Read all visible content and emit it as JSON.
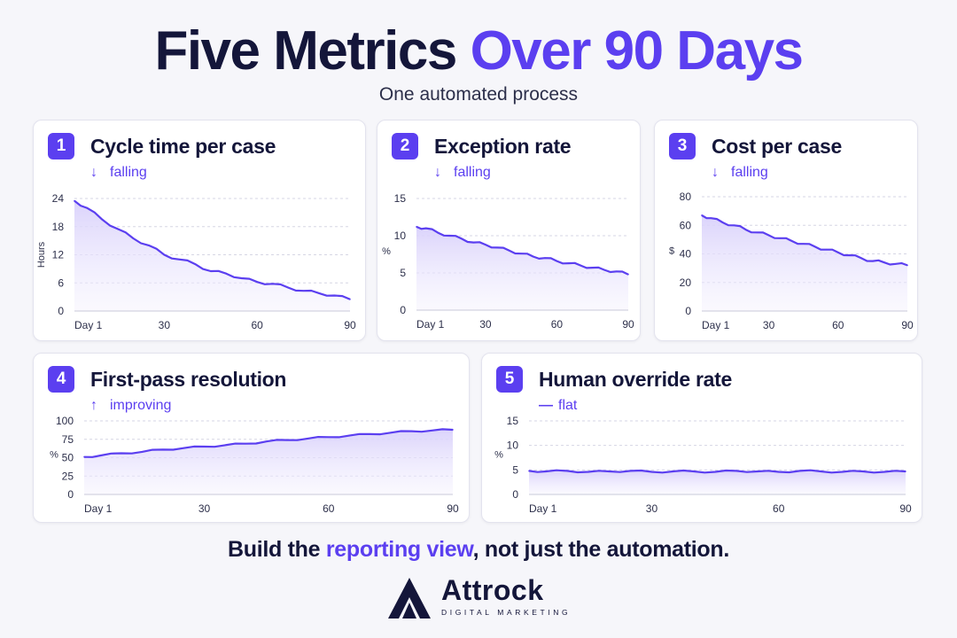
{
  "header": {
    "title_main": "Five Metrics",
    "title_accent": "Over 90 Days",
    "subtitle": "One automated process"
  },
  "colors": {
    "accent": "#5b3ff0",
    "ink": "#14163a",
    "fill": "#ece8fd"
  },
  "charts": [
    {
      "number": "1",
      "title": "Cycle time per case",
      "trend_icon": "arrow-down-icon",
      "trend_glyph": "↓",
      "trend": "falling"
    },
    {
      "number": "2",
      "title": "Exception rate",
      "trend_icon": "arrow-down-icon",
      "trend_glyph": "↓",
      "trend": "falling"
    },
    {
      "number": "3",
      "title": "Cost per case",
      "trend_icon": "arrow-down-icon",
      "trend_glyph": "↓",
      "trend": "falling"
    },
    {
      "number": "4",
      "title": "First-pass resolution",
      "trend_icon": "arrow-up-icon",
      "trend_glyph": "↑",
      "trend": "improving"
    },
    {
      "number": "5",
      "title": "Human override rate",
      "trend_icon": "flat-line-icon",
      "trend_glyph": "—",
      "trend": "flat"
    }
  ],
  "chart_data": [
    {
      "type": "line",
      "title": "Cycle time per case",
      "xlabel": "",
      "ylabel": "Hours",
      "xlim": [
        1,
        90
      ],
      "ylim": [
        0,
        24
      ],
      "yticks": [
        "0",
        "6",
        "12",
        "18",
        "24"
      ],
      "xticks": [
        "Day 1",
        "30",
        "60",
        "90"
      ],
      "grid": true,
      "x": [
        1,
        5,
        10,
        15,
        20,
        25,
        30,
        35,
        40,
        45,
        50,
        55,
        60,
        65,
        70,
        75,
        80,
        85,
        90
      ],
      "values": [
        23.5,
        22.0,
        19.5,
        17.5,
        15.5,
        14.0,
        12.0,
        11.0,
        10.0,
        8.5,
        8.0,
        7.0,
        6.2,
        5.8,
        5.0,
        4.3,
        3.8,
        3.3,
        2.5
      ]
    },
    {
      "type": "line",
      "title": "Exception rate",
      "xlabel": "",
      "ylabel": "%",
      "xlim": [
        1,
        90
      ],
      "ylim": [
        0,
        15
      ],
      "yticks": [
        "0",
        "5",
        "10",
        "15"
      ],
      "xticks": [
        "Day 1",
        "30",
        "60",
        "90"
      ],
      "grid": true,
      "x": [
        1,
        5,
        10,
        15,
        20,
        25,
        30,
        35,
        40,
        45,
        50,
        55,
        60,
        65,
        70,
        75,
        80,
        85,
        90
      ],
      "values": [
        11.2,
        11.0,
        10.4,
        10.0,
        9.6,
        9.1,
        8.8,
        8.4,
        8.0,
        7.6,
        7.2,
        7.0,
        6.6,
        6.3,
        6.0,
        5.7,
        5.4,
        5.2,
        4.8
      ]
    },
    {
      "type": "line",
      "title": "Cost per case",
      "xlabel": "",
      "ylabel": "$",
      "xlim": [
        1,
        90
      ],
      "ylim": [
        0,
        80
      ],
      "yticks": [
        "0",
        "20",
        "40",
        "60",
        "80"
      ],
      "xticks": [
        "Day 1",
        "30",
        "60",
        "90"
      ],
      "grid": true,
      "x": [
        1,
        5,
        10,
        15,
        20,
        25,
        30,
        35,
        40,
        45,
        50,
        55,
        60,
        65,
        70,
        75,
        80,
        85,
        90
      ],
      "values": [
        67,
        65,
        62,
        60,
        57,
        55,
        53,
        51,
        49,
        47,
        45,
        43,
        41,
        39,
        37,
        35,
        34,
        33,
        32
      ]
    },
    {
      "type": "line",
      "title": "First-pass resolution",
      "xlabel": "",
      "ylabel": "%",
      "xlim": [
        1,
        90
      ],
      "ylim": [
        0,
        100
      ],
      "yticks": [
        "0",
        "25",
        "50",
        "75",
        "100"
      ],
      "xticks": [
        "Day 1",
        "30",
        "60",
        "90"
      ],
      "grid": true,
      "x": [
        1,
        5,
        10,
        15,
        20,
        25,
        30,
        35,
        40,
        45,
        50,
        55,
        60,
        65,
        70,
        75,
        80,
        85,
        90
      ],
      "values": [
        51,
        53,
        56,
        58,
        61,
        63,
        65,
        67,
        69,
        72,
        74,
        76,
        78,
        80,
        82,
        84,
        86,
        87,
        88
      ]
    },
    {
      "type": "line",
      "title": "Human override rate",
      "xlabel": "",
      "ylabel": "%",
      "xlim": [
        1,
        90
      ],
      "ylim": [
        0,
        15
      ],
      "yticks": [
        "0",
        "5",
        "10",
        "15"
      ],
      "xticks": [
        "Day 1",
        "30",
        "60",
        "90"
      ],
      "grid": true,
      "x": [
        1,
        5,
        10,
        15,
        20,
        25,
        30,
        35,
        40,
        45,
        50,
        55,
        60,
        65,
        70,
        75,
        80,
        85,
        90
      ],
      "values": [
        4.8,
        4.7,
        4.8,
        4.6,
        4.7,
        4.8,
        4.6,
        4.7,
        4.7,
        4.6,
        4.8,
        4.7,
        4.6,
        4.8,
        4.7,
        4.6,
        4.7,
        4.6,
        4.7
      ]
    }
  ],
  "footer": {
    "tagline_start": "Build the ",
    "tagline_accent": "reporting view",
    "tagline_end": ", not just the automation.",
    "brand": "Attrock",
    "brand_sub": "DIGITAL MARKETING"
  }
}
